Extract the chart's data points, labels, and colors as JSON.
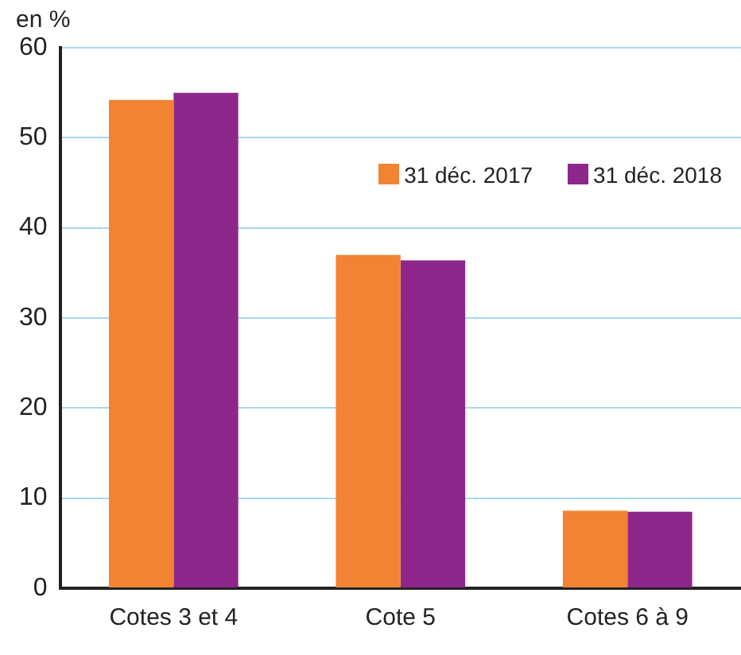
{
  "chart_data": {
    "type": "bar",
    "ylabel": "en %",
    "categories": [
      "Cotes 3 et 4",
      "Cote 5",
      "Cotes 6 à 9"
    ],
    "series": [
      {
        "name": "31 déc. 2017",
        "color": "#f28333",
        "values": [
          54.2,
          37.0,
          8.6
        ]
      },
      {
        "name": "31 déc. 2018",
        "color": "#8e278b",
        "values": [
          55.0,
          36.4,
          8.5
        ]
      }
    ],
    "ylim": [
      0,
      60
    ],
    "yticks": [
      0,
      10,
      20,
      30,
      40,
      50,
      60
    ],
    "grid": "y",
    "legend": "top right"
  }
}
